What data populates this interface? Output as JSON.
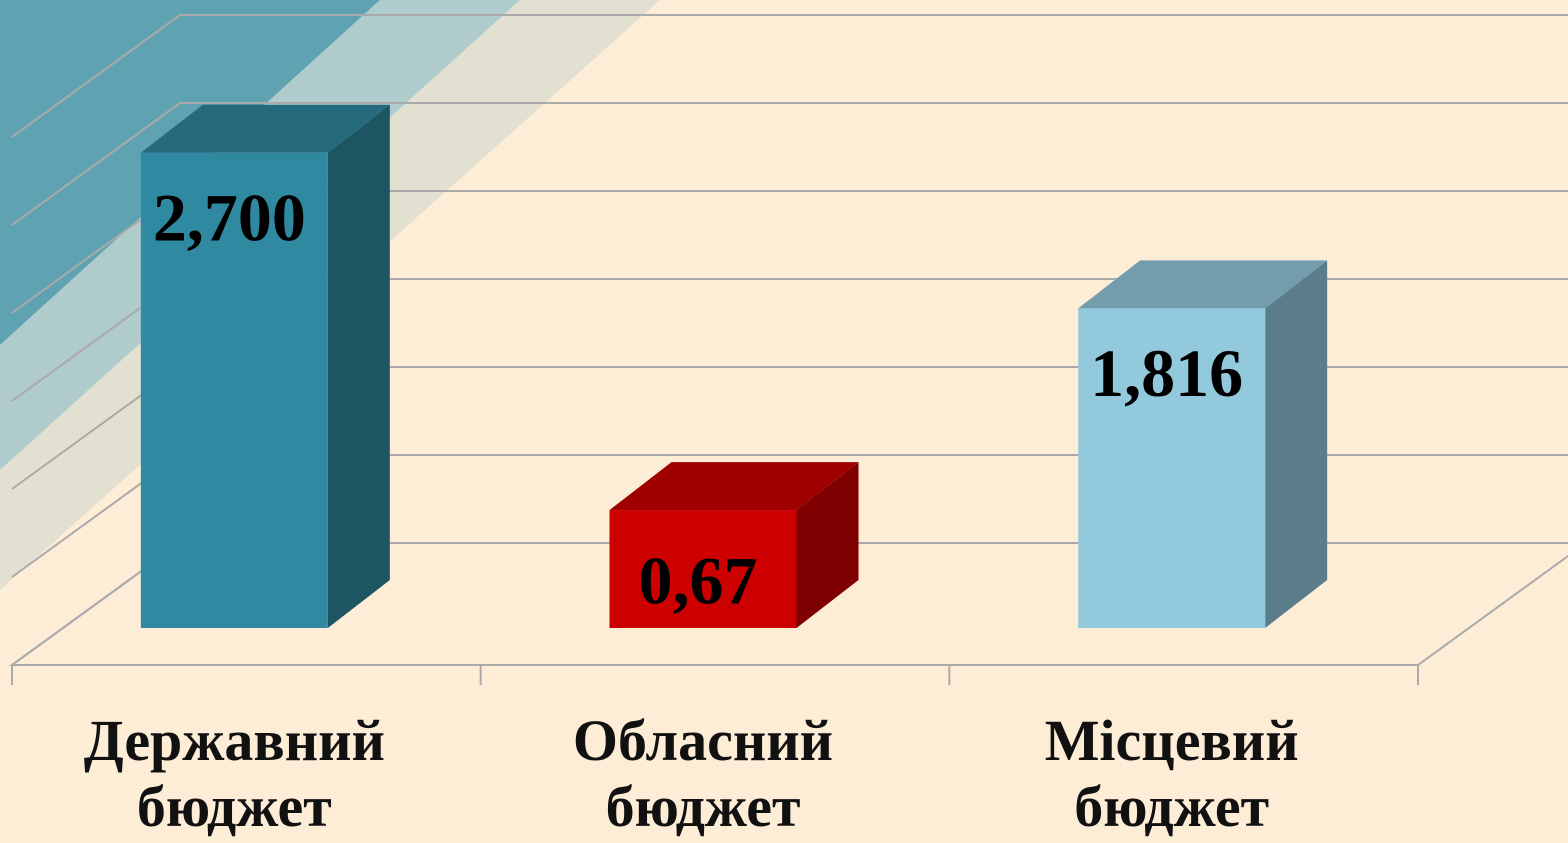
{
  "chart_data": {
    "type": "bar3d",
    "categories": [
      "Державний бюджет",
      "Обласний бюджет",
      "Місцевий бюджет"
    ],
    "values": [
      2.7,
      0.67,
      1.816
    ],
    "value_labels": [
      "2,700",
      "0,67",
      "1,816"
    ],
    "colors": [
      "#2f89a0",
      "#cc0000",
      "#93c9dd"
    ],
    "ylim": [
      0,
      3
    ],
    "yticks": [
      0,
      0.5,
      1,
      1.5,
      2,
      2.5,
      3
    ],
    "grid": true
  }
}
